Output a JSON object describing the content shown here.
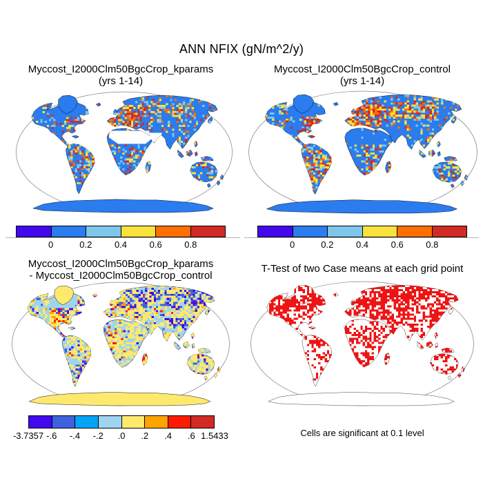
{
  "figure": {
    "title": "ANN NFIX (gN/m^2/y)",
    "background": "#ffffff"
  },
  "palette": {
    "violet": "#4408EE",
    "blue": "#2A7CEF",
    "royal": "#3E62DE",
    "azure": "#05A3F6",
    "lightblue": "#7CC7EA",
    "paleblue": "#9FD4EE",
    "yellow": "#FAE13C",
    "paleyellow": "#FDE96E",
    "orange": "#FF6E00",
    "amber": "#FFA400",
    "brightred": "#FB1C03",
    "red": "#D02B24",
    "tred": "#EE1414",
    "coast": "#000000",
    "globe_edge": "#6a6a6a"
  },
  "chart_data": [
    {
      "type": "map",
      "panel": "top-left",
      "title": "Myccost_I2000Clm50BgcCrop_kparams",
      "subtitle": "(yrs 1-14)",
      "variable": "ANN NFIX",
      "units": "gN/m^2/y",
      "projection": "Robinson",
      "colorbar": {
        "tick_labels": [
          "0",
          "0.2",
          "0.4",
          "0.6",
          "0.8"
        ],
        "segment_colors": [
          "#4408EE",
          "#2A7CEF",
          "#7CC7EA",
          "#FAE13C",
          "#FF6E00",
          "#D02B24"
        ]
      },
      "summary": "Annual N fixation, kparams case: most vegetated land in 0-0.2 bin (blue); 0.4-0.8+ hotspots in eastern North America, Europe, central Asia, tropical South America, East Africa and Southeast Asia; Sahara and Arabian deserts blank (white)."
    },
    {
      "type": "map",
      "panel": "top-right",
      "title": "Myccost_I2000Clm50BgcCrop_control",
      "subtitle": "(yrs 1-14)",
      "variable": "ANN NFIX",
      "units": "gN/m^2/y",
      "projection": "Robinson",
      "colorbar": {
        "tick_labels": [
          "0",
          "0.2",
          "0.4",
          "0.6",
          "0.8"
        ],
        "segment_colors": [
          "#4408EE",
          "#2A7CEF",
          "#7CC7EA",
          "#FAE13C",
          "#FF6E00",
          "#D02B24"
        ]
      },
      "summary": "Annual N fixation, control case: similar pattern with denser orange/red hotspots across Europe, eastern North America and boreal Asia; Sahara and Arabia filled in the lowest (blue) bin."
    },
    {
      "type": "map",
      "panel": "bottom-left",
      "title": "Myccost_I2000Clm50BgcCrop_kparams",
      "subtitle": "- Myccost_I2000Clm50BgcCrop_control",
      "projection": "Robinson",
      "colorbar": {
        "tick_labels": [
          "-3.7357",
          "-.6",
          "-.4",
          "-.2",
          ".0",
          ".2",
          ".4",
          ".6",
          "1.5433"
        ],
        "segment_colors": [
          "#4408EE",
          "#3E62DE",
          "#05A3F6",
          "#9FD4EE",
          "#FDE96E",
          "#FFA400",
          "#FB1C03",
          "#D02B24"
        ],
        "min": -3.7357,
        "max": 1.5433
      },
      "summary": "Difference (kparams - control): mostly small values (pale blue -0.2-0 and pale yellow 0-0.2); strong negative (dark blue) patches over boreal North America, northern Eurasia, Tibet and southeastern South America; scattered positive red/orange cells over the US plains, Europe, African margins and Madagascar; Greenland and Antarctica in the 0-.2 bin."
    },
    {
      "type": "map",
      "panel": "bottom-right",
      "title": "T-Test of two Case means at each grid point",
      "note": "Cells are significant at 0.1 level",
      "projection": "Robinson",
      "significant_color": "#EE1414",
      "summary": "Red cells mark grid points where the two case means differ significantly at the 0.1 level; significance covers most land except Antarctica, with gaps in the Amazon, Sahara and central Australia."
    }
  ]
}
